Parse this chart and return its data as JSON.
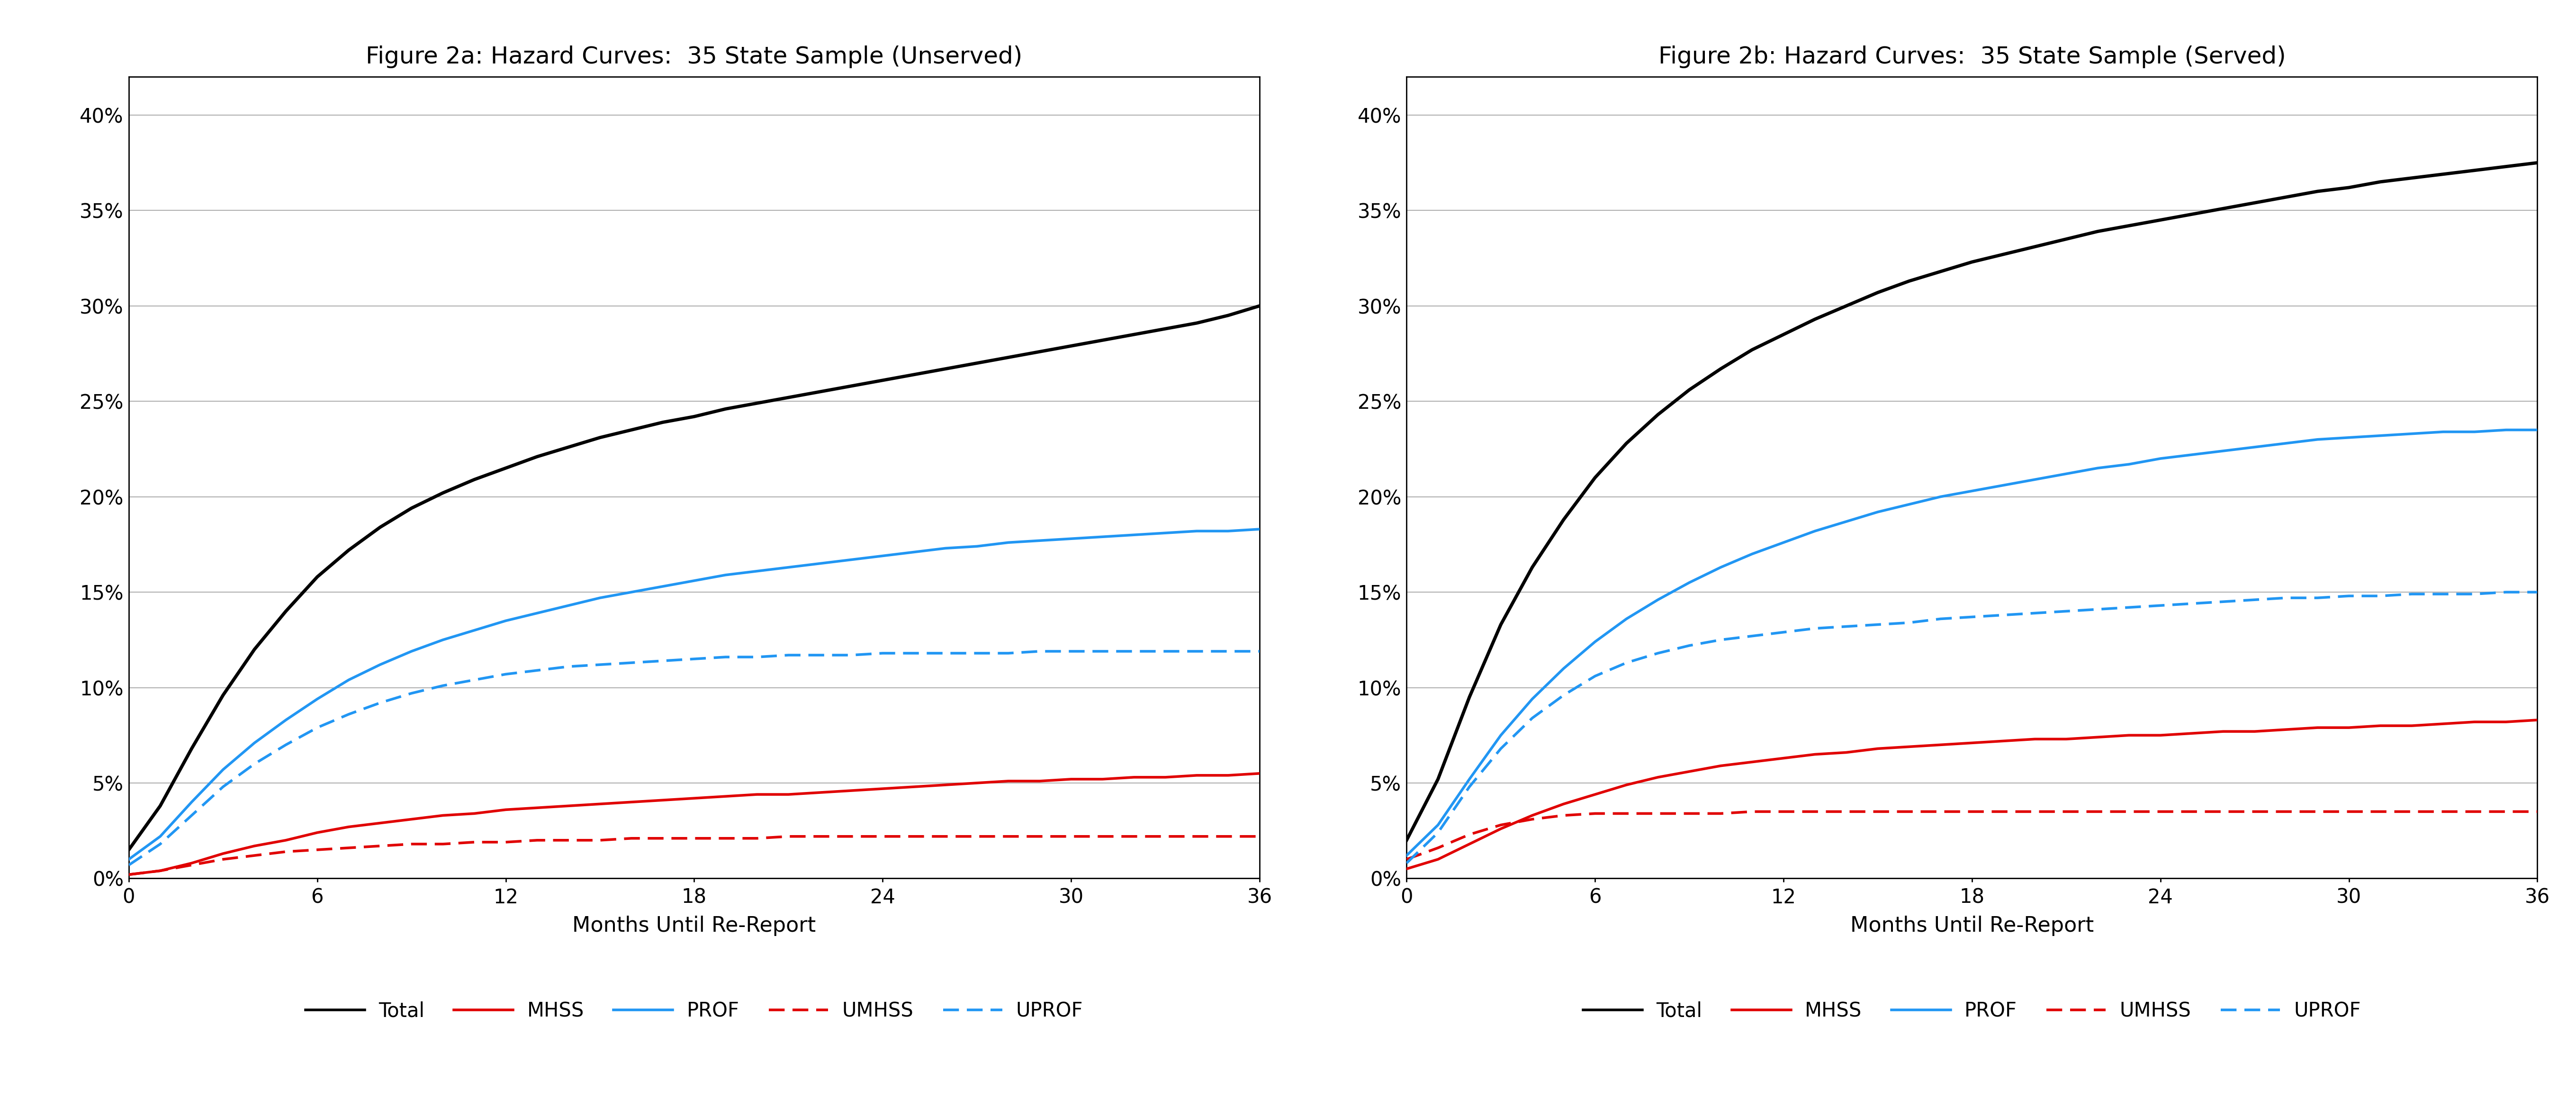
{
  "title_a": "Figure 2a: Hazard Curves:  35 State Sample (Unserved)",
  "title_b": "Figure 2b: Hazard Curves:  35 State Sample (Served)",
  "xlabel": "Months Until Re-Report",
  "x": [
    0,
    1,
    2,
    3,
    4,
    5,
    6,
    7,
    8,
    9,
    10,
    11,
    12,
    13,
    14,
    15,
    16,
    17,
    18,
    19,
    20,
    21,
    22,
    23,
    24,
    25,
    26,
    27,
    28,
    29,
    30,
    31,
    32,
    33,
    34,
    35,
    36
  ],
  "unserved": {
    "Total": [
      0.015,
      0.038,
      0.068,
      0.096,
      0.12,
      0.14,
      0.158,
      0.172,
      0.184,
      0.194,
      0.202,
      0.209,
      0.215,
      0.221,
      0.226,
      0.231,
      0.235,
      0.239,
      0.242,
      0.246,
      0.249,
      0.252,
      0.255,
      0.258,
      0.261,
      0.264,
      0.267,
      0.27,
      0.273,
      0.276,
      0.279,
      0.282,
      0.285,
      0.288,
      0.291,
      0.295,
      0.3
    ],
    "MHSS": [
      0.002,
      0.004,
      0.008,
      0.013,
      0.017,
      0.02,
      0.024,
      0.027,
      0.029,
      0.031,
      0.033,
      0.034,
      0.036,
      0.037,
      0.038,
      0.039,
      0.04,
      0.041,
      0.042,
      0.043,
      0.044,
      0.044,
      0.045,
      0.046,
      0.047,
      0.048,
      0.049,
      0.05,
      0.051,
      0.051,
      0.052,
      0.052,
      0.053,
      0.053,
      0.054,
      0.054,
      0.055
    ],
    "PROF": [
      0.01,
      0.022,
      0.04,
      0.057,
      0.071,
      0.083,
      0.094,
      0.104,
      0.112,
      0.119,
      0.125,
      0.13,
      0.135,
      0.139,
      0.143,
      0.147,
      0.15,
      0.153,
      0.156,
      0.159,
      0.161,
      0.163,
      0.165,
      0.167,
      0.169,
      0.171,
      0.173,
      0.174,
      0.176,
      0.177,
      0.178,
      0.179,
      0.18,
      0.181,
      0.182,
      0.182,
      0.183
    ],
    "UMHSS": [
      0.002,
      0.004,
      0.007,
      0.01,
      0.012,
      0.014,
      0.015,
      0.016,
      0.017,
      0.018,
      0.018,
      0.019,
      0.019,
      0.02,
      0.02,
      0.02,
      0.021,
      0.021,
      0.021,
      0.021,
      0.021,
      0.022,
      0.022,
      0.022,
      0.022,
      0.022,
      0.022,
      0.022,
      0.022,
      0.022,
      0.022,
      0.022,
      0.022,
      0.022,
      0.022,
      0.022,
      0.022
    ],
    "UPROF": [
      0.007,
      0.018,
      0.033,
      0.048,
      0.06,
      0.07,
      0.079,
      0.086,
      0.092,
      0.097,
      0.101,
      0.104,
      0.107,
      0.109,
      0.111,
      0.112,
      0.113,
      0.114,
      0.115,
      0.116,
      0.116,
      0.117,
      0.117,
      0.117,
      0.118,
      0.118,
      0.118,
      0.118,
      0.118,
      0.119,
      0.119,
      0.119,
      0.119,
      0.119,
      0.119,
      0.119,
      0.119
    ]
  },
  "served": {
    "Total": [
      0.02,
      0.052,
      0.095,
      0.133,
      0.163,
      0.188,
      0.21,
      0.228,
      0.243,
      0.256,
      0.267,
      0.277,
      0.285,
      0.293,
      0.3,
      0.307,
      0.313,
      0.318,
      0.323,
      0.327,
      0.331,
      0.335,
      0.339,
      0.342,
      0.345,
      0.348,
      0.351,
      0.354,
      0.357,
      0.36,
      0.362,
      0.365,
      0.367,
      0.369,
      0.371,
      0.373,
      0.375
    ],
    "MHSS": [
      0.005,
      0.01,
      0.018,
      0.026,
      0.033,
      0.039,
      0.044,
      0.049,
      0.053,
      0.056,
      0.059,
      0.061,
      0.063,
      0.065,
      0.066,
      0.068,
      0.069,
      0.07,
      0.071,
      0.072,
      0.073,
      0.073,
      0.074,
      0.075,
      0.075,
      0.076,
      0.077,
      0.077,
      0.078,
      0.079,
      0.079,
      0.08,
      0.08,
      0.081,
      0.082,
      0.082,
      0.083
    ],
    "PROF": [
      0.012,
      0.028,
      0.052,
      0.075,
      0.094,
      0.11,
      0.124,
      0.136,
      0.146,
      0.155,
      0.163,
      0.17,
      0.176,
      0.182,
      0.187,
      0.192,
      0.196,
      0.2,
      0.203,
      0.206,
      0.209,
      0.212,
      0.215,
      0.217,
      0.22,
      0.222,
      0.224,
      0.226,
      0.228,
      0.23,
      0.231,
      0.232,
      0.233,
      0.234,
      0.234,
      0.235,
      0.235
    ],
    "UMHSS": [
      0.01,
      0.016,
      0.023,
      0.028,
      0.031,
      0.033,
      0.034,
      0.034,
      0.034,
      0.034,
      0.034,
      0.035,
      0.035,
      0.035,
      0.035,
      0.035,
      0.035,
      0.035,
      0.035,
      0.035,
      0.035,
      0.035,
      0.035,
      0.035,
      0.035,
      0.035,
      0.035,
      0.035,
      0.035,
      0.035,
      0.035,
      0.035,
      0.035,
      0.035,
      0.035,
      0.035,
      0.035
    ],
    "UPROF": [
      0.008,
      0.024,
      0.048,
      0.068,
      0.084,
      0.096,
      0.106,
      0.113,
      0.118,
      0.122,
      0.125,
      0.127,
      0.129,
      0.131,
      0.132,
      0.133,
      0.134,
      0.136,
      0.137,
      0.138,
      0.139,
      0.14,
      0.141,
      0.142,
      0.143,
      0.144,
      0.145,
      0.146,
      0.147,
      0.147,
      0.148,
      0.148,
      0.149,
      0.149,
      0.149,
      0.15,
      0.15
    ]
  },
  "colors": {
    "Total": "#000000",
    "MHSS": "#e00000",
    "PROF": "#2196f3",
    "UMHSS": "#e00000",
    "UPROF": "#2196f3"
  },
  "styles": {
    "Total": {
      "linestyle": "solid",
      "linewidth": 5.0
    },
    "MHSS": {
      "linestyle": "solid",
      "linewidth": 4.0
    },
    "PROF": {
      "linestyle": "solid",
      "linewidth": 4.0
    },
    "UMHSS": {
      "linestyle": "dashed",
      "linewidth": 4.0
    },
    "UPROF": {
      "linestyle": "dashed",
      "linewidth": 4.0
    }
  },
  "ylim": [
    0.0,
    0.42
  ],
  "yticks": [
    0.0,
    0.05,
    0.1,
    0.15,
    0.2,
    0.25,
    0.3,
    0.35,
    0.4
  ],
  "xticks": [
    0,
    6,
    12,
    18,
    24,
    30,
    36
  ],
  "xlim": [
    0,
    36
  ],
  "background_color": "#ffffff",
  "grid_color": "#b0b0b0",
  "title_fontsize": 36,
  "label_fontsize": 32,
  "tick_fontsize": 30,
  "legend_fontsize": 30,
  "legend_linewidth": 4.0
}
